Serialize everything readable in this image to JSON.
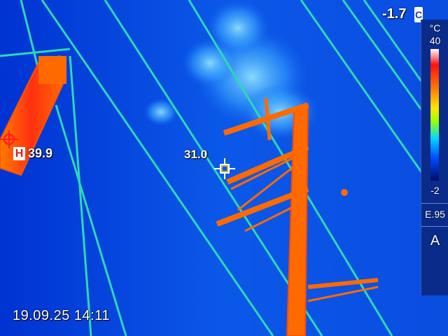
{
  "measurements": {
    "spot_value": "31.0",
    "hot_spot_badge": "H",
    "hot_spot_value": "39.9"
  },
  "status": {
    "timestamp": "19.09.25 14:11",
    "ambient_temp": "-1.7",
    "ambient_icon": "C"
  },
  "scale": {
    "unit": "°C",
    "max": "40",
    "min": "-2",
    "emissivity": "E.95",
    "mode": "A"
  },
  "icons": {
    "spot": "crosshair-spot-icon",
    "hot": "crosshair-hot-icon"
  },
  "colors": {
    "sky": "#0a4de0",
    "wire": "#2dd8b4",
    "pylon": "#ff6a00",
    "hot": "#ff1a10"
  }
}
